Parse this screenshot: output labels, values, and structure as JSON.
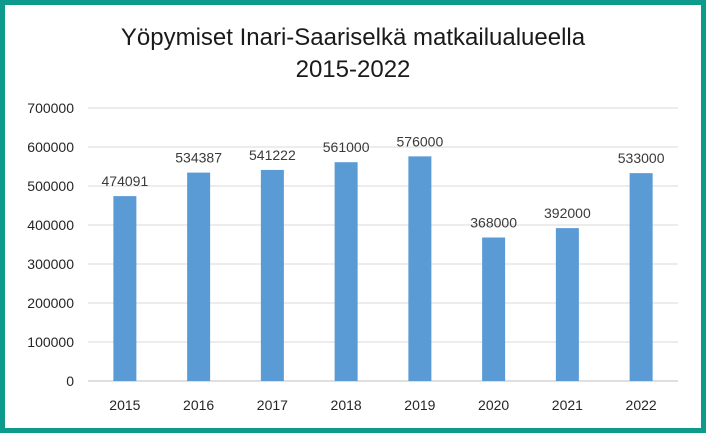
{
  "colors": {
    "border": "#0f9a8e",
    "bar": "#5b9bd5",
    "grid": "#d9d9d9"
  },
  "chart_data": {
    "type": "bar",
    "title_line1": "Yöpymiset Inari-Saariselkä matkailualueella",
    "title_line2": "2015-2022",
    "categories": [
      "2015",
      "2016",
      "2017",
      "2018",
      "2019",
      "2020",
      "2021",
      "2022"
    ],
    "values": [
      474091,
      534387,
      541222,
      561000,
      576000,
      368000,
      392000,
      533000
    ],
    "data_labels": [
      "474091",
      "534387",
      "541222",
      "561000",
      "576000",
      "368000",
      "392000",
      "533000"
    ],
    "y_ticks": [
      "0",
      "100000",
      "200000",
      "300000",
      "400000",
      "500000",
      "600000",
      "700000"
    ],
    "ylim": [
      0,
      700000
    ],
    "grid": true,
    "legend": "none"
  }
}
